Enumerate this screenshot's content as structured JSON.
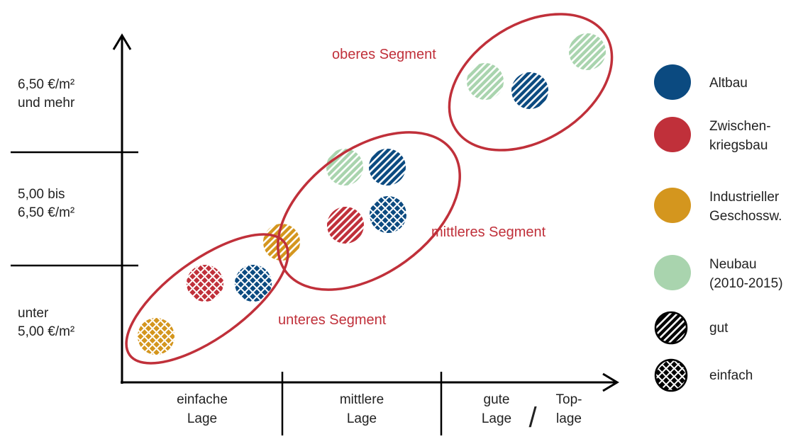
{
  "y_axis": {
    "labels": [
      {
        "lines": [
          "6,50 €/m²",
          "und mehr"
        ]
      },
      {
        "lines": [
          "5,00 bis",
          "6,50 €/m²"
        ]
      },
      {
        "lines": [
          "unter",
          "5,00 €/m²"
        ]
      }
    ]
  },
  "x_axis": {
    "labels": [
      {
        "lines": [
          "einfache",
          "Lage"
        ]
      },
      {
        "lines": [
          "mittlere",
          "Lage"
        ]
      },
      {
        "lines": [
          "gute",
          "Lage"
        ]
      },
      {
        "lines": [
          "/"
        ]
      },
      {
        "lines": [
          "Top-",
          "lage"
        ]
      }
    ]
  },
  "segments": [
    "oberes Segment",
    "mittleres Segment",
    "unteres Segment"
  ],
  "legend": [
    {
      "lines": [
        "Altbau"
      ]
    },
    {
      "lines": [
        "Zwischen-",
        "kriegsbau"
      ]
    },
    {
      "lines": [
        "Industrieller",
        "Geschossw."
      ]
    },
    {
      "lines": [
        "Neubau",
        "(2010-2015)"
      ]
    },
    {
      "lines": [
        "gut"
      ]
    },
    {
      "lines": [
        "einfach"
      ]
    }
  ]
}
